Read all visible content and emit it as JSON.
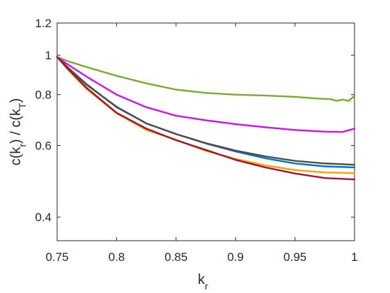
{
  "chart_data": {
    "type": "line",
    "title": "",
    "xlabel": {
      "text": "k",
      "sub": "r"
    },
    "ylabel": [
      {
        "text": "c(k"
      },
      {
        "text": "r",
        "sub": true
      },
      {
        "text": ") / c(k"
      },
      {
        "text": "T",
        "sub": true
      },
      {
        "text": ")"
      }
    ],
    "xlim": [
      0.75,
      1
    ],
    "ylim": [
      0.35,
      1.2
    ],
    "yscale": "log",
    "xticks": [
      0.75,
      0.8,
      0.85,
      0.9,
      0.95,
      1
    ],
    "xtick_labels": [
      "0.75",
      "0.8",
      "0.85",
      "0.9",
      "0.95",
      "1"
    ],
    "yticks": [
      0.4,
      0.6,
      0.8,
      1,
      1.2
    ],
    "ytick_labels": [
      "0.4",
      "0.6",
      "0.8",
      "1",
      "1.2"
    ],
    "grid": false,
    "legend": "none",
    "series": [
      {
        "color": "#77AC30",
        "x": [
          0.75,
          0.76,
          0.775,
          0.8,
          0.825,
          0.85,
          0.875,
          0.9,
          0.925,
          0.95,
          0.97,
          0.98,
          0.985,
          0.99,
          0.995,
          0.998,
          1.0
        ],
        "y": [
          0.99,
          0.965,
          0.935,
          0.89,
          0.853,
          0.823,
          0.808,
          0.8,
          0.796,
          0.79,
          0.782,
          0.78,
          0.772,
          0.778,
          0.772,
          0.785,
          0.795
        ]
      },
      {
        "color": "#CC11EE",
        "x": [
          0.75,
          0.76,
          0.775,
          0.8,
          0.825,
          0.85,
          0.875,
          0.9,
          0.925,
          0.95,
          0.975,
          0.99,
          1.0
        ],
        "y": [
          0.99,
          0.945,
          0.885,
          0.8,
          0.745,
          0.71,
          0.692,
          0.677,
          0.665,
          0.655,
          0.649,
          0.648,
          0.66
        ]
      },
      {
        "color": "#0072BD",
        "x": [
          0.75,
          0.76,
          0.775,
          0.8,
          0.825,
          0.85,
          0.875,
          0.9,
          0.925,
          0.95,
          0.975,
          1.0
        ],
        "y": [
          0.99,
          0.928,
          0.848,
          0.745,
          0.68,
          0.64,
          0.607,
          0.58,
          0.558,
          0.542,
          0.533,
          0.53
        ]
      },
      {
        "color": "#4D4D4D",
        "x": [
          0.75,
          0.76,
          0.775,
          0.8,
          0.825,
          0.85,
          0.875,
          0.9,
          0.925,
          0.95,
          0.975,
          1.0
        ],
        "y": [
          0.99,
          0.926,
          0.845,
          0.747,
          0.68,
          0.64,
          0.608,
          0.583,
          0.564,
          0.55,
          0.542,
          0.538
        ]
      },
      {
        "color": "#FFA000",
        "x": [
          0.75,
          0.76,
          0.775,
          0.8,
          0.825,
          0.85,
          0.875,
          0.9,
          0.925,
          0.95,
          0.975,
          1.0
        ],
        "y": [
          0.99,
          0.915,
          0.825,
          0.72,
          0.655,
          0.62,
          0.582,
          0.556,
          0.536,
          0.522,
          0.515,
          0.513
        ]
      },
      {
        "color": "#A2142F",
        "x": [
          0.75,
          0.76,
          0.775,
          0.8,
          0.825,
          0.85,
          0.875,
          0.9,
          0.925,
          0.95,
          0.975,
          1.0
        ],
        "y": [
          0.99,
          0.92,
          0.83,
          0.722,
          0.66,
          0.618,
          0.585,
          0.553,
          0.53,
          0.512,
          0.499,
          0.495
        ]
      }
    ]
  }
}
